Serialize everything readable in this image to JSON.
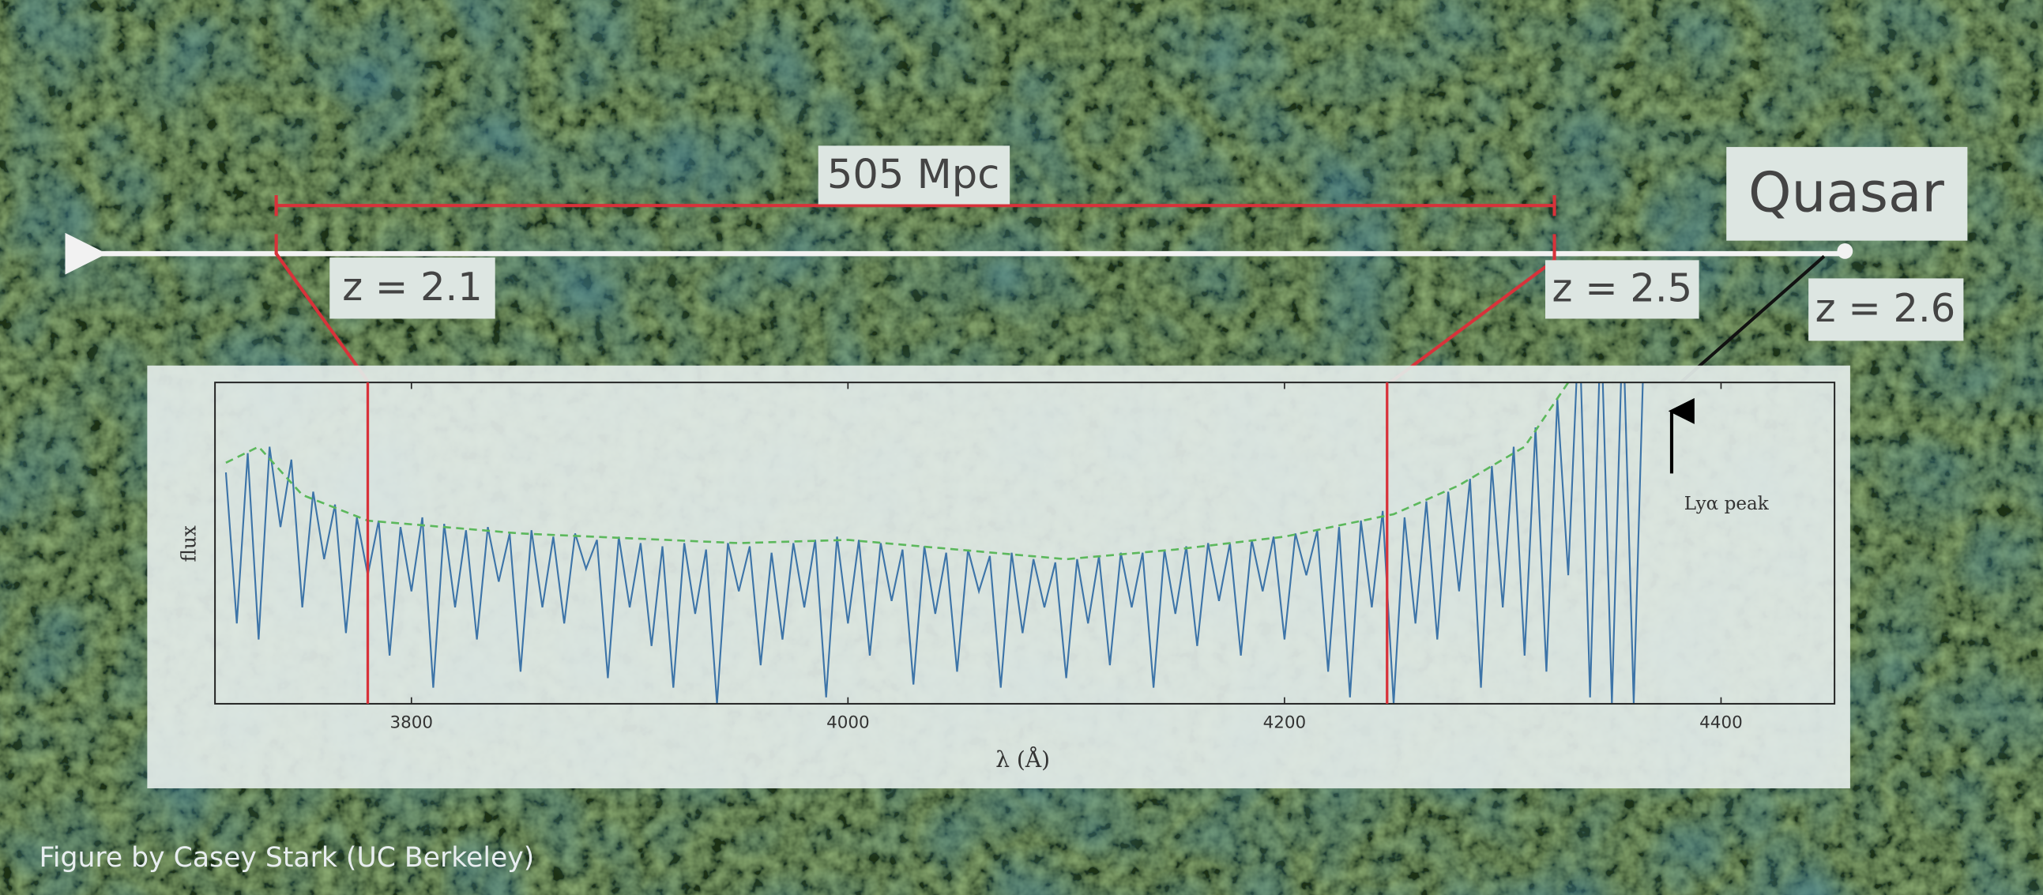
{
  "chart_data": {
    "type": "line",
    "xlabel": "λ (Å)",
    "ylabel": "flux",
    "xlim": [
      3710,
      4452
    ],
    "ylim": [
      0,
      1
    ],
    "xticks": [
      3800,
      4000,
      4200,
      4400
    ],
    "series": [
      {
        "color": "#3d74a8",
        "x": [
          3715,
          3720,
          3725,
          3730,
          3735,
          3740,
          3745,
          3750,
          3755,
          3760,
          3765,
          3770,
          3775,
          3780,
          3785,
          3790,
          3795,
          3800,
          3805,
          3810,
          3815,
          3820,
          3825,
          3830,
          3835,
          3840,
          3845,
          3850,
          3855,
          3860,
          3865,
          3870,
          3875,
          3880,
          3885,
          3890,
          3895,
          3900,
          3905,
          3910,
          3915,
          3920,
          3925,
          3930,
          3935,
          3940,
          3945,
          3950,
          3955,
          3960,
          3965,
          3970,
          3975,
          3980,
          3985,
          3990,
          3995,
          4000,
          4005,
          4010,
          4015,
          4020,
          4025,
          4030,
          4035,
          4040,
          4045,
          4050,
          4055,
          4060,
          4065,
          4070,
          4075,
          4080,
          4085,
          4090,
          4095,
          4100,
          4105,
          4110,
          4115,
          4120,
          4125,
          4130,
          4135,
          4140,
          4145,
          4150,
          4155,
          4160,
          4165,
          4170,
          4175,
          4180,
          4185,
          4190,
          4195,
          4200,
          4205,
          4210,
          4215,
          4220,
          4225,
          4230,
          4235,
          4240,
          4245,
          4250,
          4255,
          4260,
          4265,
          4270,
          4275,
          4280,
          4285,
          4290,
          4295,
          4300,
          4305,
          4310,
          4315,
          4320,
          4325,
          4330,
          4335,
          4340,
          4345,
          4350,
          4355,
          4360,
          4365
        ],
        "values": [
          0.72,
          0.25,
          0.78,
          0.2,
          0.8,
          0.55,
          0.76,
          0.3,
          0.66,
          0.45,
          0.62,
          0.22,
          0.58,
          0.4,
          0.57,
          0.15,
          0.55,
          0.35,
          0.58,
          0.05,
          0.56,
          0.3,
          0.54,
          0.2,
          0.55,
          0.38,
          0.53,
          0.1,
          0.54,
          0.3,
          0.52,
          0.25,
          0.53,
          0.42,
          0.51,
          0.08,
          0.52,
          0.3,
          0.5,
          0.18,
          0.49,
          0.05,
          0.5,
          0.28,
          0.48,
          0.0,
          0.5,
          0.35,
          0.49,
          0.12,
          0.47,
          0.2,
          0.5,
          0.3,
          0.51,
          0.02,
          0.52,
          0.25,
          0.51,
          0.15,
          0.5,
          0.32,
          0.48,
          0.06,
          0.49,
          0.28,
          0.47,
          0.1,
          0.48,
          0.35,
          0.46,
          0.05,
          0.47,
          0.22,
          0.45,
          0.3,
          0.44,
          0.08,
          0.45,
          0.25,
          0.46,
          0.12,
          0.47,
          0.3,
          0.47,
          0.05,
          0.48,
          0.28,
          0.49,
          0.18,
          0.5,
          0.32,
          0.5,
          0.15,
          0.51,
          0.35,
          0.52,
          0.2,
          0.53,
          0.4,
          0.54,
          0.1,
          0.55,
          0.02,
          0.57,
          0.3,
          0.6,
          0.0,
          0.58,
          0.25,
          0.63,
          0.2,
          0.66,
          0.35,
          0.7,
          0.05,
          0.74,
          0.3,
          0.8,
          0.15,
          0.86,
          0.1,
          0.95,
          0.4,
          1.2,
          0.02,
          1.2,
          0.0,
          1.2,
          0.0,
          1.2
        ]
      },
      {
        "color": "#5cb85c",
        "dashed": true,
        "x": [
          3715,
          3730,
          3750,
          3780,
          3850,
          3950,
          4000,
          4100,
          4150,
          4200,
          4250,
          4280,
          4310,
          4330
        ],
        "values": [
          0.75,
          0.8,
          0.65,
          0.57,
          0.53,
          0.5,
          0.51,
          0.45,
          0.48,
          0.52,
          0.59,
          0.68,
          0.8,
          1.0
        ]
      }
    ],
    "markers": [
      {
        "x": 3780,
        "label": "z = 2.1"
      },
      {
        "x": 4247,
        "label": "z = 2.5"
      }
    ],
    "annotations": {
      "distance": "505 Mpc",
      "source": "Quasar",
      "source_z": "z = 2.6",
      "peak": "Lyα peak"
    },
    "credit": "Figure by Casey Stark (UC Berkeley)"
  }
}
